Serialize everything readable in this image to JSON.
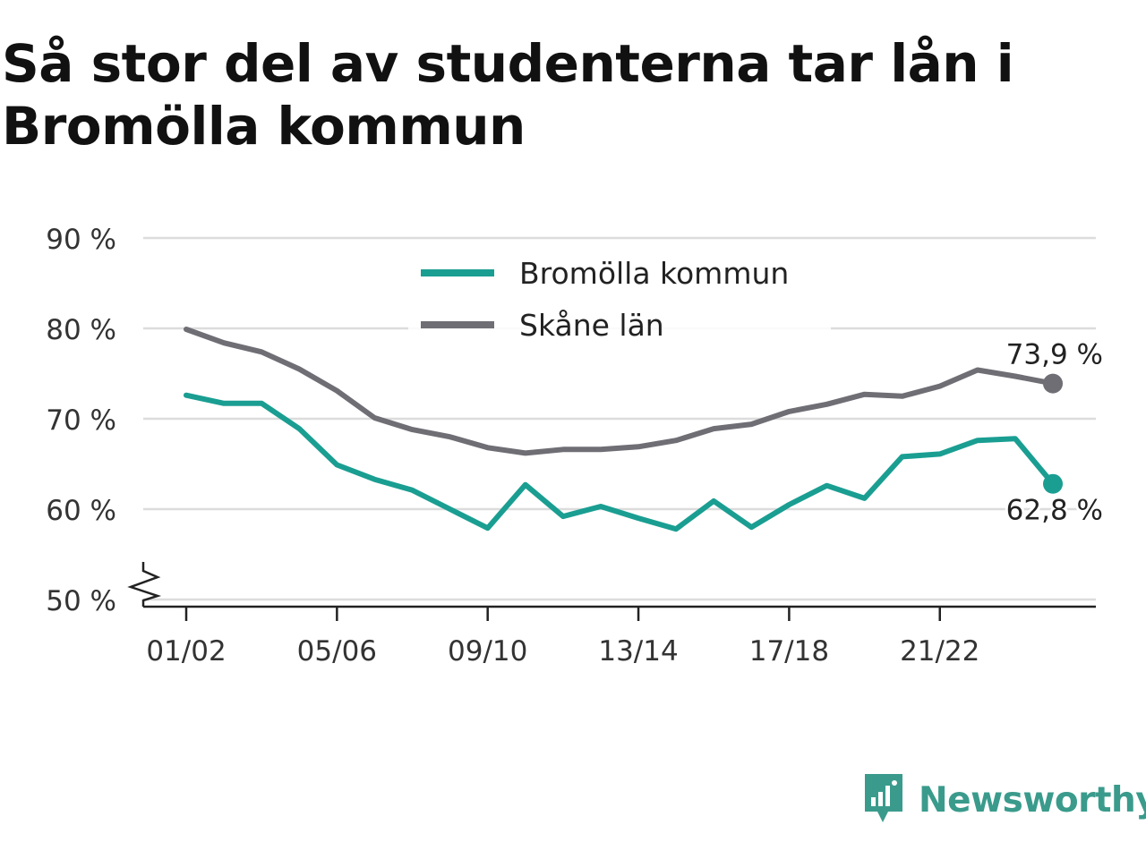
{
  "title": "Så stor del av studenterna tar lån i Bromölla kommun",
  "brand": {
    "name": "Newsworthy",
    "icon": "newsworthy-logo-icon",
    "color": "#3a9b8c"
  },
  "chart_data": {
    "type": "line",
    "title": "Så stor del av studenterna tar lån i Bromölla kommun",
    "xlabel": "",
    "ylabel": "",
    "x": [
      "01/02",
      "02/03",
      "03/04",
      "04/05",
      "05/06",
      "06/07",
      "07/08",
      "08/09",
      "09/10",
      "10/11",
      "11/12",
      "12/13",
      "13/14",
      "14/15",
      "15/16",
      "16/17",
      "17/18",
      "18/19",
      "19/20",
      "20/21",
      "21/22",
      "22/23",
      "23/24",
      "24/25"
    ],
    "x_tick_labels": [
      "01/02",
      "05/06",
      "09/10",
      "13/14",
      "17/18",
      "21/22"
    ],
    "y_tick_labels": [
      "50 %",
      "60 %",
      "70 %",
      "80 %",
      "90 %"
    ],
    "ylim": [
      50,
      90
    ],
    "y_axis_break": true,
    "grid": true,
    "legend_position": "top-center",
    "series": [
      {
        "name": "Bromölla kommun",
        "color": "#1a9e92",
        "values": [
          72.6,
          71.7,
          71.7,
          68.9,
          64.9,
          63.3,
          62.1,
          60.0,
          57.9,
          62.7,
          59.2,
          60.3,
          59.0,
          57.8,
          60.9,
          58.0,
          60.5,
          62.6,
          61.2,
          65.8,
          66.1,
          67.6,
          67.8,
          62.8
        ],
        "end_label": "62,8 %"
      },
      {
        "name": "Skåne län",
        "color": "#6f6e75",
        "values": [
          79.9,
          78.4,
          77.4,
          75.5,
          73.1,
          70.1,
          68.8,
          68.0,
          66.8,
          66.2,
          66.6,
          66.6,
          66.9,
          67.6,
          68.9,
          69.4,
          70.8,
          71.6,
          72.7,
          72.5,
          73.6,
          75.4,
          74.7,
          73.9
        ],
        "end_label": "73,9 %"
      }
    ]
  }
}
